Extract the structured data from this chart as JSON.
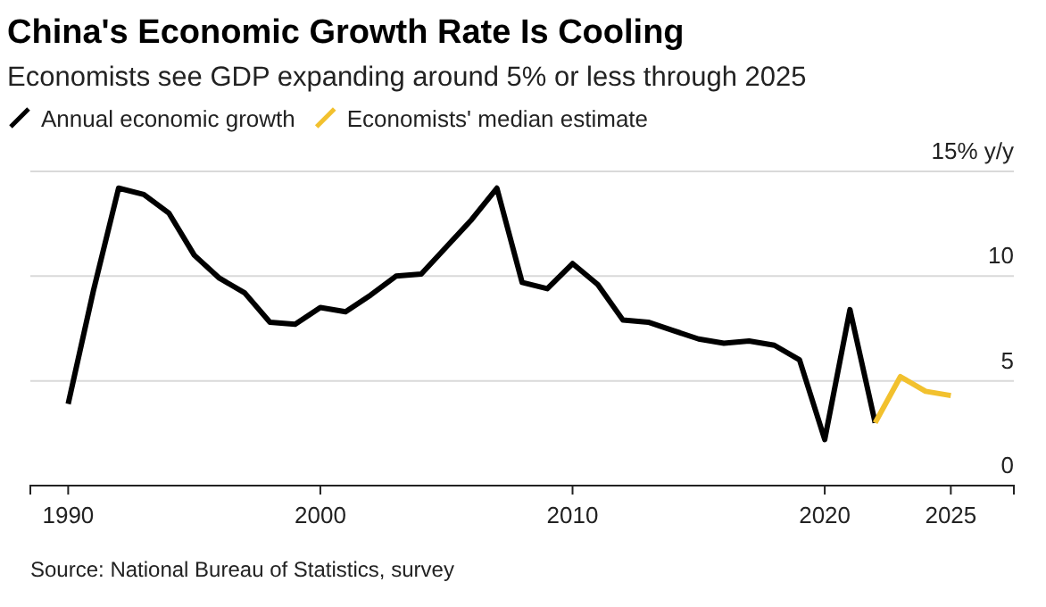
{
  "chart_data": {
    "type": "line",
    "title": "China's Economic Growth Rate Is Cooling",
    "subtitle": "Economists see GDP expanding around 5% or less through 2025",
    "series": [
      {
        "name": "Annual economic growth",
        "color": "#000000",
        "x": [
          1990,
          1991,
          1992,
          1993,
          1994,
          1995,
          1996,
          1997,
          1998,
          1999,
          2000,
          2001,
          2002,
          2003,
          2004,
          2005,
          2006,
          2007,
          2008,
          2009,
          2010,
          2011,
          2012,
          2013,
          2014,
          2015,
          2016,
          2017,
          2018,
          2019,
          2020,
          2021,
          2022
        ],
        "values": [
          3.9,
          9.3,
          14.2,
          13.9,
          13.0,
          11.0,
          9.9,
          9.2,
          7.8,
          7.7,
          8.5,
          8.3,
          9.1,
          10.0,
          10.1,
          11.4,
          12.7,
          14.2,
          9.7,
          9.4,
          10.6,
          9.6,
          7.9,
          7.8,
          7.4,
          7.0,
          6.8,
          6.9,
          6.7,
          6.0,
          2.2,
          8.4,
          3.0
        ]
      },
      {
        "name": "Economists' median estimate",
        "color": "#f2c12e",
        "x": [
          2022,
          2023,
          2024,
          2025
        ],
        "values": [
          3.0,
          5.2,
          4.5,
          4.3
        ]
      }
    ],
    "xlim": [
      1988.5,
      2027.5
    ],
    "xticks": [
      1990,
      2000,
      2010,
      2020,
      2025
    ],
    "ylim": [
      0,
      15
    ],
    "yticks": [
      0,
      5,
      10,
      {
        "value": 15,
        "label": "15% y/y"
      }
    ],
    "grid": "y",
    "legend": "top left",
    "line_style": "solid",
    "marker": "none",
    "annotations": [
      "Source: National Bureau of Statistics, survey"
    ]
  }
}
